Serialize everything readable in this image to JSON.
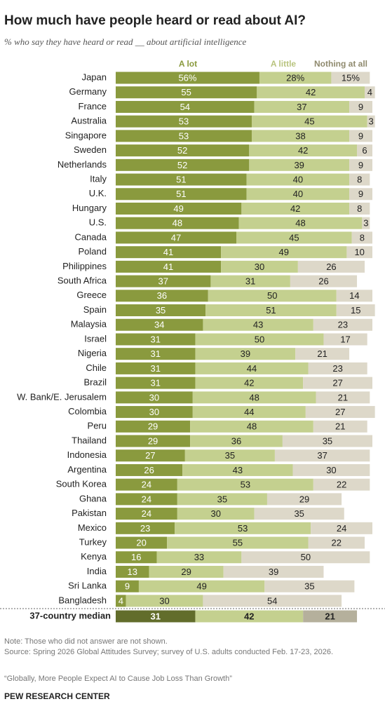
{
  "chart_data": {
    "type": "stacked-bar",
    "title": "How much have people heard or read about AI?",
    "subtitle": "% who say they have heard or read __ about artificial intelligence",
    "categories": [
      "Japan",
      "Germany",
      "France",
      "Australia",
      "Singapore",
      "Sweden",
      "Netherlands",
      "Italy",
      "U.K.",
      "Hungary",
      "U.S.",
      "Canada",
      "Poland",
      "Philippines",
      "South Africa",
      "Greece",
      "Spain",
      "Malaysia",
      "Israel",
      "Nigeria",
      "Chile",
      "Brazil",
      "W. Bank/E. Jerusalem",
      "Colombia",
      "Peru",
      "Thailand",
      "Indonesia",
      "Argentina",
      "South Korea",
      "Ghana",
      "Pakistan",
      "Mexico",
      "Turkey",
      "Kenya",
      "India",
      "Sri Lanka",
      "Bangladesh"
    ],
    "series": [
      {
        "name": "A lot",
        "color": "#8a9a3e",
        "label_color": "#ffffff",
        "values": [
          56,
          55,
          54,
          53,
          53,
          52,
          52,
          51,
          51,
          49,
          48,
          47,
          41,
          41,
          37,
          36,
          35,
          34,
          31,
          31,
          31,
          31,
          30,
          30,
          29,
          29,
          27,
          26,
          24,
          24,
          24,
          23,
          20,
          16,
          13,
          9,
          4
        ],
        "value_labels": [
          "56%",
          "55",
          "54",
          "53",
          "53",
          "52",
          "52",
          "51",
          "51",
          "49",
          "48",
          "47",
          "41",
          "41",
          "37",
          "36",
          "35",
          "34",
          "31",
          "31",
          "31",
          "31",
          "30",
          "30",
          "29",
          "29",
          "27",
          "26",
          "24",
          "24",
          "24",
          "23",
          "20",
          "16",
          "13",
          "9",
          "4"
        ]
      },
      {
        "name": "A little",
        "color": "#c4d08f",
        "label_color": "#222222",
        "values": [
          28,
          42,
          37,
          45,
          38,
          42,
          39,
          40,
          40,
          42,
          48,
          45,
          49,
          30,
          31,
          50,
          51,
          43,
          50,
          39,
          44,
          42,
          48,
          44,
          48,
          36,
          35,
          43,
          53,
          35,
          30,
          53,
          55,
          33,
          29,
          49,
          30
        ],
        "value_labels": [
          "28%",
          "42",
          "37",
          "45",
          "38",
          "42",
          "39",
          "40",
          "40",
          "42",
          "48",
          "45",
          "49",
          "30",
          "31",
          "50",
          "51",
          "43",
          "50",
          "39",
          "44",
          "42",
          "48",
          "44",
          "48",
          "36",
          "35",
          "43",
          "53",
          "35",
          "30",
          "53",
          "55",
          "33",
          "29",
          "49",
          "30"
        ]
      },
      {
        "name": "Nothing at all",
        "color": "#ddd8c9",
        "label_color": "#222222",
        "values": [
          15,
          4,
          9,
          3,
          9,
          6,
          9,
          8,
          9,
          8,
          3,
          8,
          10,
          26,
          26,
          14,
          15,
          23,
          17,
          21,
          23,
          27,
          21,
          27,
          21,
          35,
          37,
          30,
          22,
          29,
          35,
          24,
          22,
          50,
          39,
          35,
          54
        ],
        "value_labels": [
          "15%",
          "4",
          "9",
          "3",
          "9",
          "6",
          "9",
          "8",
          "9",
          "8",
          "3",
          "8",
          "10",
          "26",
          "26",
          "14",
          "15",
          "23",
          "17",
          "21",
          "23",
          "27",
          "21",
          "27",
          "21",
          "35",
          "37",
          "30",
          "22",
          "29",
          "35",
          "24",
          "22",
          "50",
          "39",
          "35",
          "54"
        ]
      }
    ],
    "legend_colors": [
      "#8a9a3e",
      "#b9c47f",
      "#8f8a6e"
    ],
    "median": {
      "label": "37-country median",
      "values": [
        31,
        42,
        21
      ],
      "colors": [
        "#626d2b",
        "#c4d08f",
        "#b5b09c"
      ],
      "label_colors": [
        "#ffffff",
        "#222222",
        "#222222"
      ]
    },
    "note": "Note: Those who did not answer are not shown.",
    "source": "Source: Spring 2026 Global Attitudes Survey; survey of U.S. adults conducted Feb. 17-23, 2026.",
    "report": "“Globally, More People Expect AI to Cause Job Loss Than Growth”",
    "footer": "PEW RESEARCH CENTER"
  }
}
